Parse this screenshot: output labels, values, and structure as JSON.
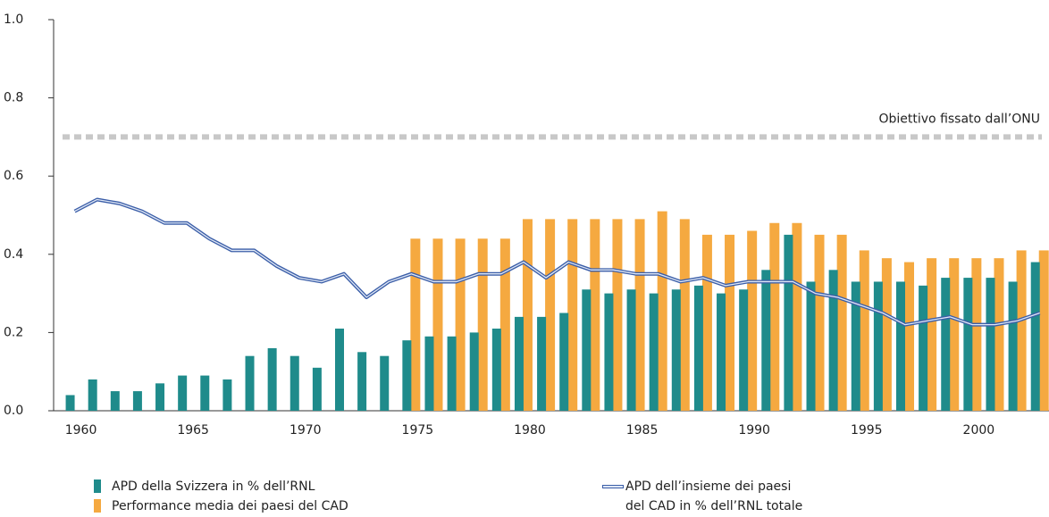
{
  "chart_data": {
    "type": "bar_line",
    "categories": [
      "1960",
      null,
      null,
      null,
      null,
      "1965",
      null,
      null,
      null,
      null,
      "1970",
      null,
      null,
      null,
      null,
      "1975",
      null,
      null,
      null,
      null,
      "1980",
      null,
      null,
      null,
      null,
      "1985",
      null,
      null,
      null,
      null,
      "1990",
      null,
      null,
      null,
      null,
      "1995",
      null,
      null,
      null,
      null,
      "2000",
      null,
      null,
      null
    ],
    "series": [
      {
        "name": "APD della Svizzera in % dell’RNL",
        "type": "bar",
        "color": "#1f8b8b",
        "values": [
          0.04,
          0.08,
          0.05,
          0.05,
          0.07,
          0.09,
          0.09,
          0.08,
          0.14,
          0.16,
          0.14,
          0.11,
          0.21,
          0.15,
          0.14,
          0.18,
          0.19,
          0.19,
          0.2,
          0.21,
          0.24,
          0.24,
          0.25,
          0.31,
          0.3,
          0.31,
          0.3,
          0.31,
          0.32,
          0.3,
          0.31,
          0.36,
          0.45,
          0.33,
          0.36,
          0.33,
          0.33,
          0.33,
          0.32,
          0.34,
          0.34,
          0.34,
          0.33,
          0.38
        ]
      },
      {
        "name": "Performance media dei paesi del CAD",
        "type": "bar",
        "color": "#f5a940",
        "values": [
          null,
          null,
          null,
          null,
          null,
          null,
          null,
          null,
          null,
          null,
          null,
          null,
          null,
          null,
          null,
          0.44,
          0.44,
          0.44,
          0.44,
          0.44,
          0.49,
          0.49,
          0.49,
          0.49,
          0.49,
          0.49,
          0.51,
          0.49,
          0.45,
          0.45,
          0.46,
          0.48,
          0.48,
          0.45,
          0.45,
          0.41,
          0.39,
          0.38,
          0.39,
          0.39,
          0.39,
          0.39,
          0.41,
          0.41
        ]
      },
      {
        "name": "APD dell’insieme dei paesi\ndel CAD in % dell’RNL totale",
        "type": "line",
        "color": "#3b5ea8",
        "values": [
          0.51,
          0.54,
          0.53,
          0.51,
          0.48,
          0.48,
          0.44,
          0.41,
          0.41,
          0.37,
          0.34,
          0.33,
          0.35,
          0.29,
          0.33,
          0.35,
          0.33,
          0.33,
          0.35,
          0.35,
          0.38,
          0.34,
          0.38,
          0.36,
          0.36,
          0.35,
          0.35,
          0.33,
          0.34,
          0.32,
          0.33,
          0.33,
          0.33,
          0.3,
          0.29,
          0.27,
          0.25,
          0.22,
          0.23,
          0.24,
          0.22,
          0.22,
          0.23,
          0.25
        ]
      }
    ],
    "reference": {
      "value": 0.7,
      "label": "Obiettivo fissato dall’ONU",
      "color": "#c8c8c8"
    },
    "ylim": [
      0,
      1.0
    ],
    "yticks": [
      {
        "value": 0,
        "label": "0.0"
      },
      0.2,
      0.4,
      0.6,
      0.8,
      {
        "value": 1.0,
        "label": "1.0"
      }
    ],
    "grid": false
  }
}
